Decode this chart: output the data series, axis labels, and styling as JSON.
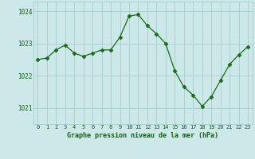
{
  "x": [
    0,
    1,
    2,
    3,
    4,
    5,
    6,
    7,
    8,
    9,
    10,
    11,
    12,
    13,
    14,
    15,
    16,
    17,
    18,
    19,
    20,
    21,
    22,
    23
  ],
  "y": [
    1022.5,
    1022.55,
    1022.8,
    1022.95,
    1022.7,
    1022.6,
    1022.7,
    1022.8,
    1022.8,
    1023.2,
    1023.85,
    1023.9,
    1023.55,
    1023.3,
    1023.0,
    1022.15,
    1021.65,
    1021.4,
    1021.05,
    1021.35,
    1021.85,
    1022.35,
    1022.65,
    1022.9
  ],
  "line_color": "#1a6b1a",
  "marker": "D",
  "marker_size": 2.5,
  "bg_color": "#cce8e8",
  "grid_color": "#aacccc",
  "xlabel": "Graphe pression niveau de la mer (hPa)",
  "xlabel_color": "#1a5c1a",
  "tick_color": "#1a5c1a",
  "ylim": [
    1020.5,
    1024.3
  ],
  "yticks": [
    1021,
    1022,
    1023,
    1024
  ],
  "xticks": [
    0,
    1,
    2,
    3,
    4,
    5,
    6,
    7,
    8,
    9,
    10,
    11,
    12,
    13,
    14,
    15,
    16,
    17,
    18,
    19,
    20,
    21,
    22,
    23
  ]
}
